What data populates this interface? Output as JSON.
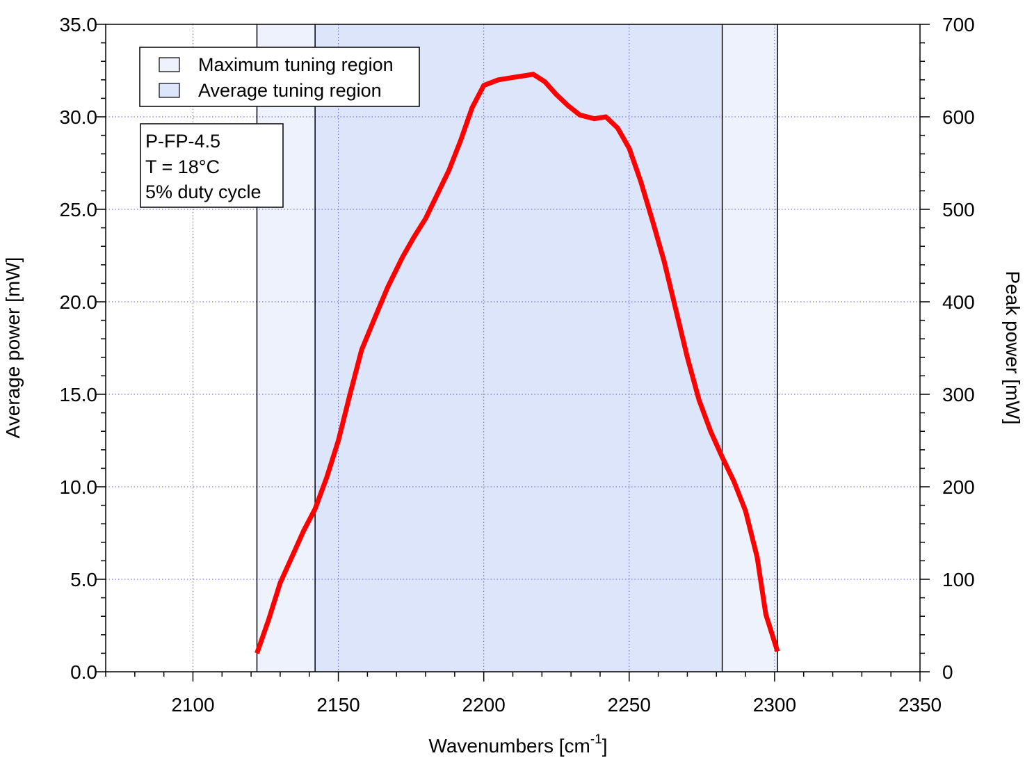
{
  "chart_data": {
    "type": "line",
    "xlabel": "Wavenumbers [cm",
    "xlabel_sup": "-1",
    "xlabel_end": "]",
    "ylabel": "Average power [mW]",
    "ylabel_right": "Peak power [mW]",
    "xlim": [
      2070,
      2350
    ],
    "ylim": [
      0,
      35
    ],
    "ylim_right": [
      0,
      700
    ],
    "x_ticks": [
      2100,
      2150,
      2200,
      2250,
      2300,
      2350
    ],
    "x_tick_labels": [
      "2100",
      "2150",
      "2200",
      "2250",
      "2300",
      "2350"
    ],
    "y_ticks": [
      0,
      5,
      10,
      15,
      20,
      25,
      30,
      35
    ],
    "y_tick_labels": [
      "0.0",
      "5.0",
      "10.0",
      "15.0",
      "20.0",
      "25.0",
      "30.0",
      "35.0"
    ],
    "y_right_ticks": [
      0,
      100,
      200,
      300,
      400,
      500,
      600,
      700
    ],
    "y_right_tick_labels": [
      "0",
      "100",
      "200",
      "300",
      "400",
      "500",
      "600",
      "700"
    ],
    "grid": true,
    "legend_position": "top-left",
    "regions": [
      {
        "name": "Maximum tuning region",
        "x_start": 2122,
        "x_end": 2301,
        "color": "#eef2fc"
      },
      {
        "name": "Average tuning region",
        "x_start": 2142,
        "x_end": 2282,
        "color": "#dde5fa"
      }
    ],
    "series": [
      {
        "color": "#ff0000",
        "x": [
          2122,
          2126,
          2130,
          2134,
          2138,
          2142,
          2146,
          2150,
          2154,
          2158,
          2163,
          2167,
          2172,
          2176,
          2180,
          2184,
          2188,
          2192,
          2196,
          2200,
          2205,
          2209,
          2213,
          2217,
          2221,
          2225,
          2229,
          2233,
          2238,
          2242,
          2246,
          2250,
          2254,
          2258,
          2262,
          2266,
          2270,
          2274,
          2278,
          2282,
          2286,
          2290,
          2294,
          2297,
          2301
        ],
        "y": [
          1.0,
          2.8,
          4.8,
          6.2,
          7.6,
          8.8,
          10.5,
          12.5,
          15.0,
          17.4,
          19.3,
          20.8,
          22.4,
          23.5,
          24.5,
          25.8,
          27.1,
          28.7,
          30.5,
          31.7,
          32.0,
          32.1,
          32.2,
          32.3,
          31.9,
          31.2,
          30.6,
          30.1,
          29.9,
          30.0,
          29.4,
          28.3,
          26.5,
          24.4,
          22.2,
          19.6,
          17.0,
          14.7,
          13.0,
          11.6,
          10.3,
          8.7,
          6.2,
          3.1,
          1.1
        ]
      }
    ]
  },
  "info_box": {
    "line1": "P-FP-4.5",
    "line2": "T = 18°C",
    "line3": "5% duty cycle"
  }
}
